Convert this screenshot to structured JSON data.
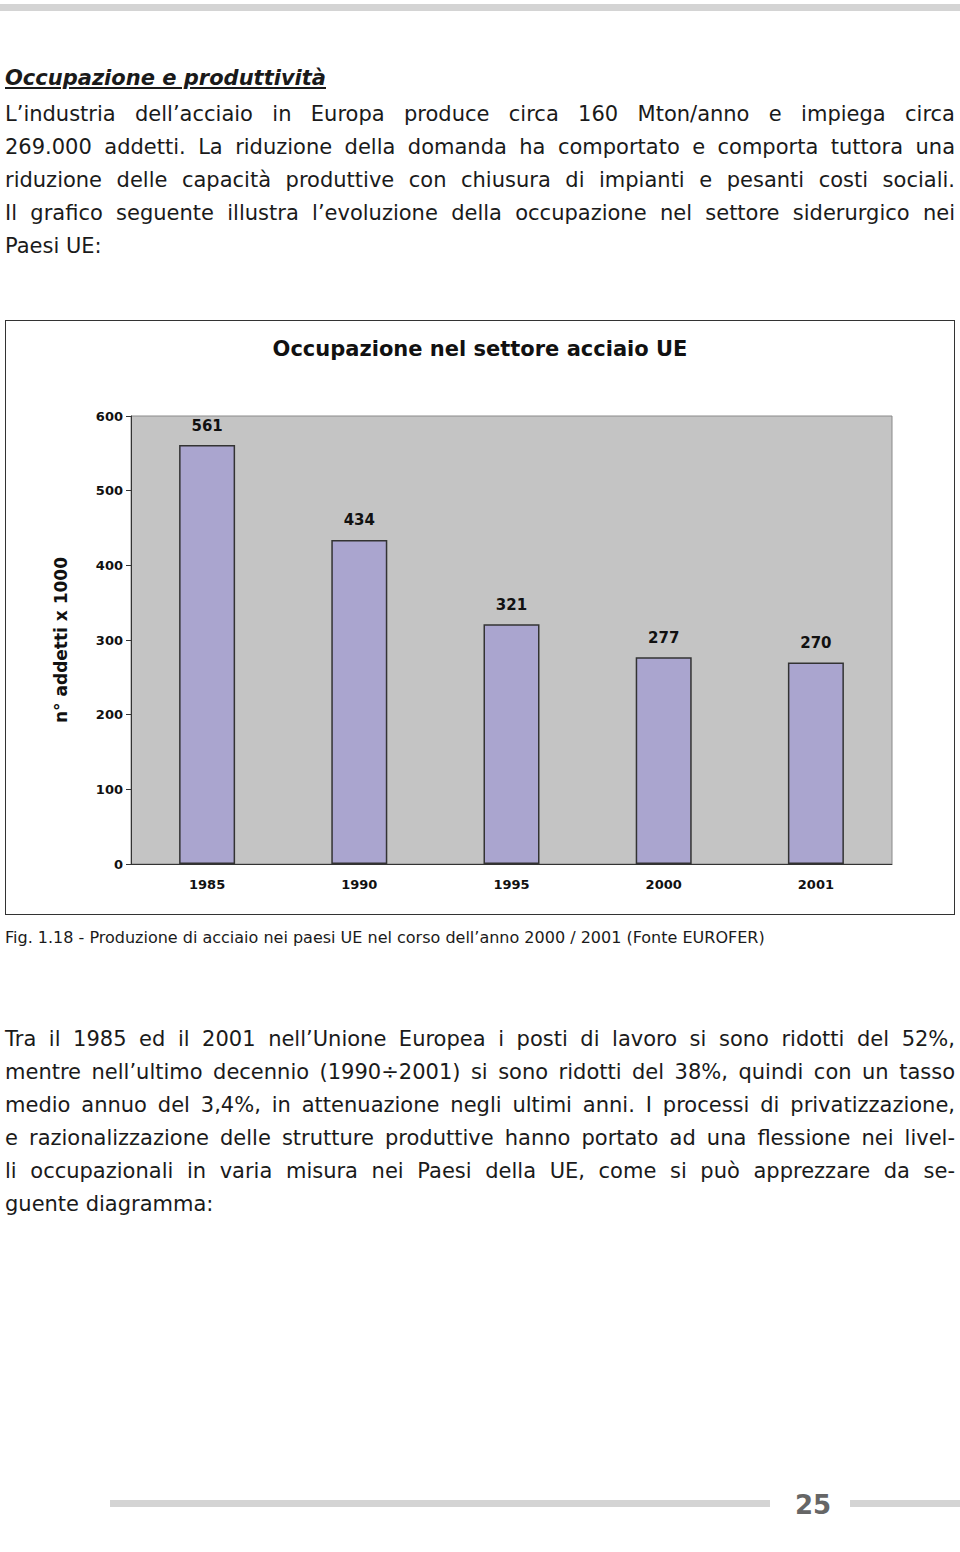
{
  "heading": "Occupazione e produttività",
  "intro_lines": [
    "L’industria dell’acciaio in Europa produce circa 160 Mton/anno e impiega circa",
    "269.000 addetti. La riduzione della domanda ha comportato e comporta tuttora una",
    "riduzione delle capacità produttive con chiusura di impianti e pesanti costi sociali.",
    "Il grafico seguente illustra l’evoluzione della occupazione nel settore siderurgico nei",
    "Paesi UE:"
  ],
  "chart_data": {
    "type": "bar",
    "title": "Occupazione nel settore acciaio UE",
    "y_label": "n° addetti x 1000",
    "categories": [
      "1985",
      "1990",
      "1995",
      "2000",
      "2001"
    ],
    "values": [
      561,
      434,
      321,
      277,
      270
    ],
    "color": "#aaa5cf",
    "ylim": [
      0,
      600
    ],
    "yticks": [
      0,
      100,
      200,
      300,
      400,
      500,
      600
    ],
    "grid": false,
    "data_labels": true
  },
  "caption": "Fig. 1.18 - Produzione di acciaio nei paesi UE nel corso dell’anno 2000 / 2001 (Fonte EUROFER)",
  "body_lines": [
    "Tra il 1985 ed il 2001 nell’Unione Europea i posti di lavoro si sono ridotti del 52%,",
    "mentre nell’ultimo decennio (1990÷2001) si sono ridotti del 38%, quindi con un tasso",
    "medio annuo del 3,4%, in attenuazione negli ultimi anni. I processi di privatizzazione,",
    "e razionalizzazione delle strutture produttive hanno portato ad una flessione nei livel-",
    "li occupazionali in varia misura nei Paesi della UE, come si può apprezzare da se-",
    "guente diagramma:"
  ],
  "page_number": "25"
}
